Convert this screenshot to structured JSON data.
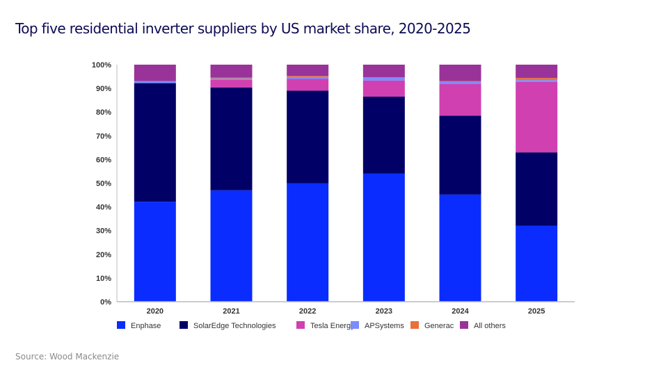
{
  "title": "Top five residential inverter suppliers by US market share, 2020-2025",
  "source": "Source: Wood Mackenzie",
  "chart_data": {
    "type": "bar",
    "stacked": true,
    "title": "Top five residential inverter suppliers by US market share, 2020-2025",
    "xlabel": "",
    "ylabel": "",
    "ylim": [
      0,
      100
    ],
    "yticks": [
      "0%",
      "10%",
      "20%",
      "30%",
      "40%",
      "50%",
      "60%",
      "70%",
      "80%",
      "90%",
      "100%"
    ],
    "categories": [
      "2020",
      "2021",
      "2022",
      "2023",
      "2024",
      "2025"
    ],
    "legend_position": "bottom",
    "grid": false,
    "series": [
      {
        "name": "Enphase",
        "color": "#0a2cff",
        "values": [
          42.2,
          47.0,
          50.0,
          54.0,
          45.2,
          32.0
        ]
      },
      {
        "name": "SolarEdge Technologies",
        "color": "#000066",
        "values": [
          50.0,
          43.4,
          39.0,
          32.5,
          33.3,
          31.0
        ]
      },
      {
        "name": "Tesla Energy",
        "color": "#d040b0",
        "values": [
          0.0,
          3.2,
          5.0,
          6.8,
          13.3,
          29.7
        ]
      },
      {
        "name": "APSystems",
        "color": "#7b8cff",
        "values": [
          0.9,
          0.6,
          0.8,
          1.4,
          1.0,
          0.8
        ]
      },
      {
        "name": "Generac",
        "color": "#e8703a",
        "values": [
          0.0,
          0.3,
          0.4,
          0.0,
          0.3,
          0.9
        ]
      },
      {
        "name": "All others",
        "color": "#993399",
        "values": [
          6.9,
          5.5,
          4.8,
          5.3,
          6.9,
          5.6
        ]
      }
    ]
  }
}
